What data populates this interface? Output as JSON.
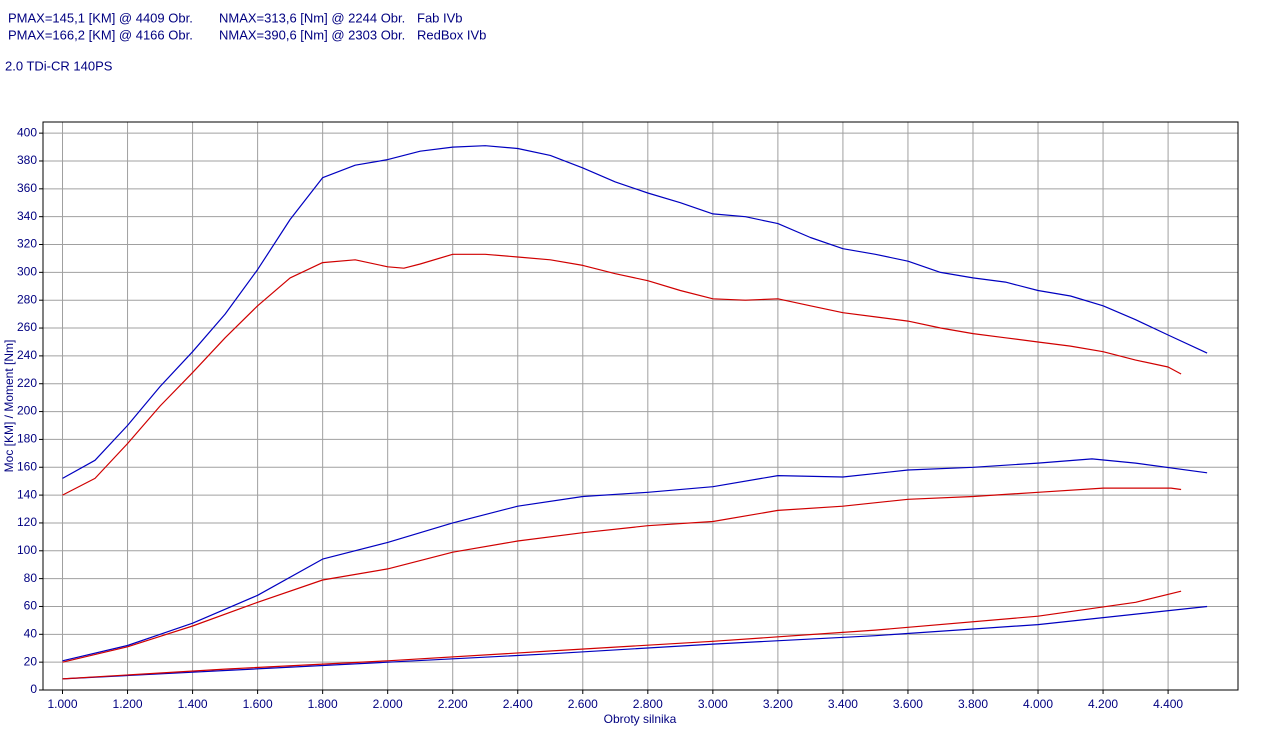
{
  "header": [
    {
      "pmax": "PMAX=145,1 [KM] @ 4409 Obr.",
      "nmax": "NMAX=313,6 [Nm] @ 2244 Obr.",
      "name": "Fab IVb"
    },
    {
      "pmax": "PMAX=166,2 [KM] @ 4166 Obr.",
      "nmax": "NMAX=390,6 [Nm] @ 2303 Obr.",
      "name": "RedBox IVb"
    }
  ],
  "subtitle": "2.0 TDi-CR 140PS",
  "chart_data": {
    "type": "line",
    "x_label": "Obroty silnika",
    "y_label": "Moc [KM] / Moment [Nm]",
    "xlim": [
      940,
      4615
    ],
    "ylim": [
      0,
      408
    ],
    "grid": true,
    "xticks": [
      {
        "value": 1000,
        "label": "1.000"
      },
      {
        "value": 1200,
        "label": "1.200"
      },
      {
        "value": 1400,
        "label": "1.400"
      },
      {
        "value": 1600,
        "label": "1.600"
      },
      {
        "value": 1800,
        "label": "1.800"
      },
      {
        "value": 2000,
        "label": "2.000"
      },
      {
        "value": 2200,
        "label": "2.200"
      },
      {
        "value": 2400,
        "label": "2.400"
      },
      {
        "value": 2600,
        "label": "2.600"
      },
      {
        "value": 2800,
        "label": "2.800"
      },
      {
        "value": 3000,
        "label": "3.000"
      },
      {
        "value": 3200,
        "label": "3.200"
      },
      {
        "value": 3400,
        "label": "3.400"
      },
      {
        "value": 3600,
        "label": "3.600"
      },
      {
        "value": 3800,
        "label": "3.800"
      },
      {
        "value": 4000,
        "label": "4.000"
      },
      {
        "value": 4200,
        "label": "4.200"
      },
      {
        "value": 4400,
        "label": "4.400"
      }
    ],
    "yticks": [
      0,
      20,
      40,
      60,
      80,
      100,
      120,
      140,
      160,
      180,
      200,
      220,
      240,
      260,
      280,
      300,
      320,
      340,
      360,
      380,
      400
    ],
    "series": [
      {
        "color": "#0000c0",
        "x": [
          1000,
          1100,
          1200,
          1300,
          1400,
          1500,
          1600,
          1700,
          1800,
          1900,
          2000,
          2100,
          2200,
          2300,
          2400,
          2500,
          2600,
          2700,
          2800,
          2900,
          3000,
          3100,
          3200,
          3300,
          3400,
          3500,
          3600,
          3700,
          3800,
          3900,
          4000,
          4100,
          4200,
          4300,
          4400,
          4520
        ],
        "values": [
          152,
          165,
          190,
          218,
          243,
          270,
          302,
          338,
          368,
          377,
          381,
          387,
          390,
          391,
          389,
          384,
          375,
          365,
          357,
          350,
          342,
          340,
          335,
          325,
          317,
          313,
          308,
          300,
          296,
          293,
          287,
          283,
          276,
          266,
          255,
          242
        ]
      },
      {
        "color": "#d00000",
        "x": [
          1000,
          1100,
          1200,
          1300,
          1400,
          1500,
          1600,
          1700,
          1800,
          1900,
          2000,
          2050,
          2100,
          2200,
          2300,
          2400,
          2500,
          2600,
          2700,
          2800,
          2900,
          3000,
          3100,
          3200,
          3300,
          3400,
          3500,
          3600,
          3700,
          3800,
          3900,
          4000,
          4100,
          4200,
          4300,
          4400,
          4440
        ],
        "values": [
          140,
          152,
          177,
          204,
          228,
          253,
          276,
          296,
          307,
          309,
          304,
          303,
          306,
          313,
          313,
          311,
          309,
          305,
          299,
          294,
          287,
          281,
          280,
          281,
          276,
          271,
          268,
          265,
          260,
          256,
          253,
          250,
          247,
          243,
          237,
          232,
          227
        ]
      },
      {
        "color": "#0000c0",
        "x": [
          1000,
          1200,
          1400,
          1600,
          1800,
          2000,
          2200,
          2400,
          2600,
          2800,
          3000,
          3200,
          3400,
          3600,
          3800,
          4000,
          4166,
          4300,
          4520
        ],
        "values": [
          21,
          32,
          48,
          68,
          94,
          106,
          120,
          132,
          139,
          142,
          146,
          154,
          153,
          158,
          160,
          163,
          166,
          163,
          156
        ]
      },
      {
        "color": "#d00000",
        "x": [
          1000,
          1200,
          1400,
          1600,
          1800,
          2000,
          2200,
          2400,
          2600,
          2800,
          3000,
          3200,
          3400,
          3600,
          3800,
          4000,
          4200,
          4409,
          4440
        ],
        "values": [
          20,
          31,
          46,
          63,
          79,
          87,
          99,
          107,
          113,
          118,
          121,
          129,
          132,
          137,
          139,
          142,
          145,
          145,
          144
        ]
      },
      {
        "color": "#0000c0",
        "x": [
          1000,
          1500,
          2000,
          2500,
          3000,
          3500,
          4000,
          4520
        ],
        "values": [
          8,
          14,
          20,
          26,
          33,
          39,
          47,
          60
        ]
      },
      {
        "color": "#d00000",
        "x": [
          1000,
          1500,
          2000,
          2500,
          3000,
          3500,
          4000,
          4300,
          4440
        ],
        "values": [
          8,
          15,
          21,
          28,
          35,
          43,
          53,
          63,
          71
        ]
      }
    ]
  }
}
